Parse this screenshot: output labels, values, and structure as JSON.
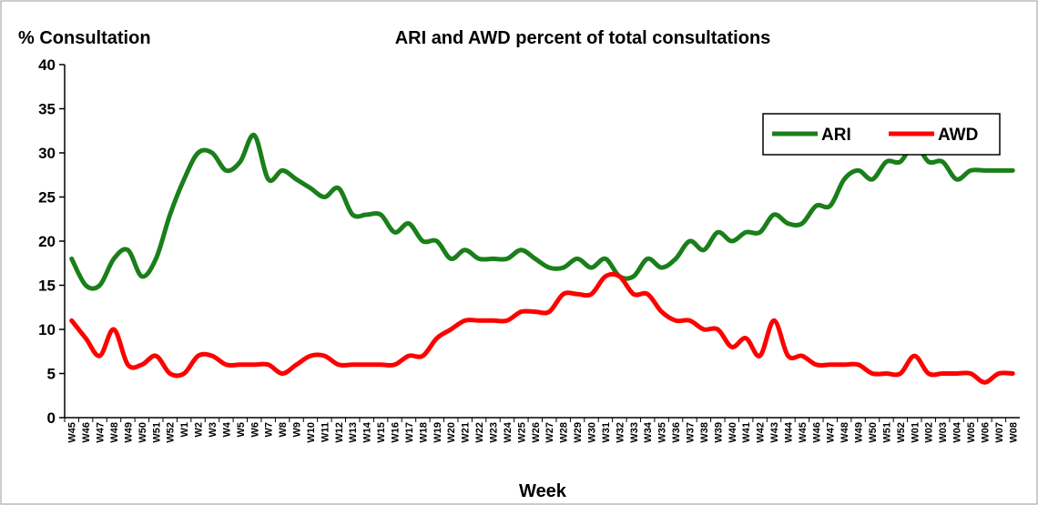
{
  "chart_data": {
    "type": "line",
    "title": "ARI and AWD percent of  total consultations",
    "y_label": "% Consultation",
    "x_label": "Week",
    "categories": [
      "W45",
      "W46",
      "W47",
      "W48",
      "W49",
      "W50",
      "W51",
      "W52",
      "W1",
      "W2",
      "W3",
      "W4",
      "W5",
      "W6",
      "W7",
      "W8",
      "W9",
      "W10",
      "W11",
      "W12",
      "W13",
      "W14",
      "W15",
      "W16",
      "W17",
      "W18",
      "W19",
      "W20",
      "W21",
      "W22",
      "W23",
      "W24",
      "W25",
      "W26",
      "W27",
      "W28",
      "W29",
      "W30",
      "W31",
      "W32",
      "W33",
      "W34",
      "W35",
      "W36",
      "W37",
      "W38",
      "W39",
      "W40",
      "W41",
      "W42",
      "W43",
      "W44",
      "W45",
      "W46",
      "W47",
      "W48",
      "W49",
      "W50",
      "W51",
      "W52",
      "W01",
      "W02",
      "W03",
      "W04",
      "W05",
      "W06",
      "W07",
      "W08"
    ],
    "series": [
      {
        "name": "ARI",
        "color": "#1a7f1a",
        "values": [
          18,
          15,
          15,
          18,
          19,
          16,
          18,
          23,
          27,
          30,
          30,
          28,
          29,
          32,
          27,
          28,
          27,
          26,
          25,
          26,
          23,
          23,
          23,
          21,
          22,
          20,
          20,
          18,
          19,
          18,
          18,
          18,
          19,
          18,
          17,
          17,
          18,
          17,
          18,
          16,
          16,
          18,
          17,
          18,
          20,
          19,
          21,
          20,
          21,
          21,
          23,
          22,
          22,
          24,
          24,
          27,
          28,
          27,
          29,
          29,
          31,
          29,
          29,
          27,
          28,
          28,
          28,
          28
        ]
      },
      {
        "name": "AWD",
        "color": "#ff0000",
        "values": [
          11,
          9,
          7,
          10,
          6,
          6,
          7,
          5,
          5,
          7,
          7,
          6,
          6,
          6,
          6,
          5,
          6,
          7,
          7,
          6,
          6,
          6,
          6,
          6,
          7,
          7,
          9,
          10,
          11,
          11,
          11,
          11,
          12,
          12,
          12,
          14,
          14,
          14,
          16,
          16,
          14,
          14,
          12,
          11,
          11,
          10,
          10,
          8,
          9,
          7,
          11,
          7,
          7,
          6,
          6,
          6,
          6,
          5,
          5,
          5,
          7,
          5,
          5,
          5,
          5,
          4,
          5,
          5
        ]
      }
    ],
    "ylim": [
      0,
      40
    ],
    "yticks": [
      0,
      5,
      10,
      15,
      20,
      25,
      30,
      35,
      40
    ],
    "legend": "upper right"
  }
}
